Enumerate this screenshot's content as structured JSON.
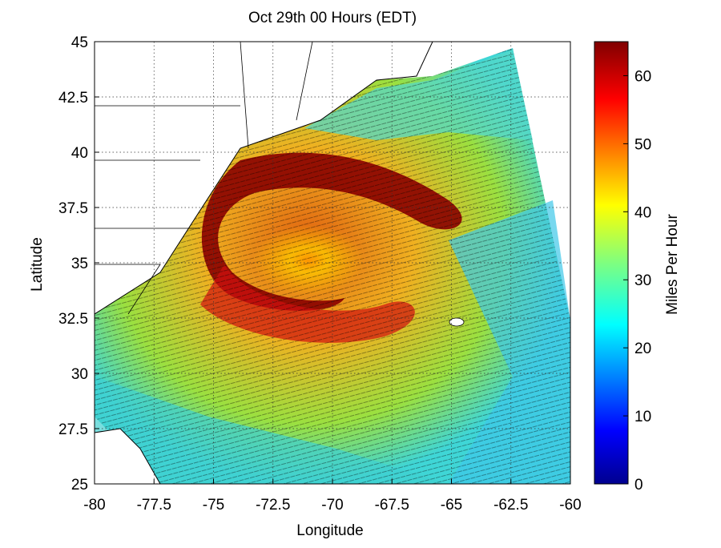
{
  "chart_data": {
    "type": "heatmap",
    "title": "Oct 29th 00 Hours (EDT)",
    "xlabel": "Longitude",
    "ylabel": "Latitude",
    "xlim": [
      -80,
      -60
    ],
    "ylim": [
      25,
      45
    ],
    "x_ticks": [
      "-80",
      "-77.5",
      "-75",
      "-72.5",
      "-70",
      "-67.5",
      "-65",
      "-62.5",
      "-60"
    ],
    "y_ticks": [
      "25",
      "27.5",
      "30",
      "32.5",
      "35",
      "37.5",
      "40",
      "42.5",
      "45"
    ],
    "grid": "dotted",
    "colorbar": {
      "label": "Miles Per Hour",
      "range": [
        0,
        65
      ],
      "ticks": [
        "0",
        "10",
        "20",
        "30",
        "40",
        "50",
        "60"
      ],
      "colormap": "jet"
    },
    "storm_center": {
      "lon": -70.2,
      "lat": 34.8
    },
    "max_wind_band_lon_range": [
      -75.5,
      -69.5
    ],
    "wind_field_note_values": {
      "peak": 65,
      "background": 25
    }
  }
}
